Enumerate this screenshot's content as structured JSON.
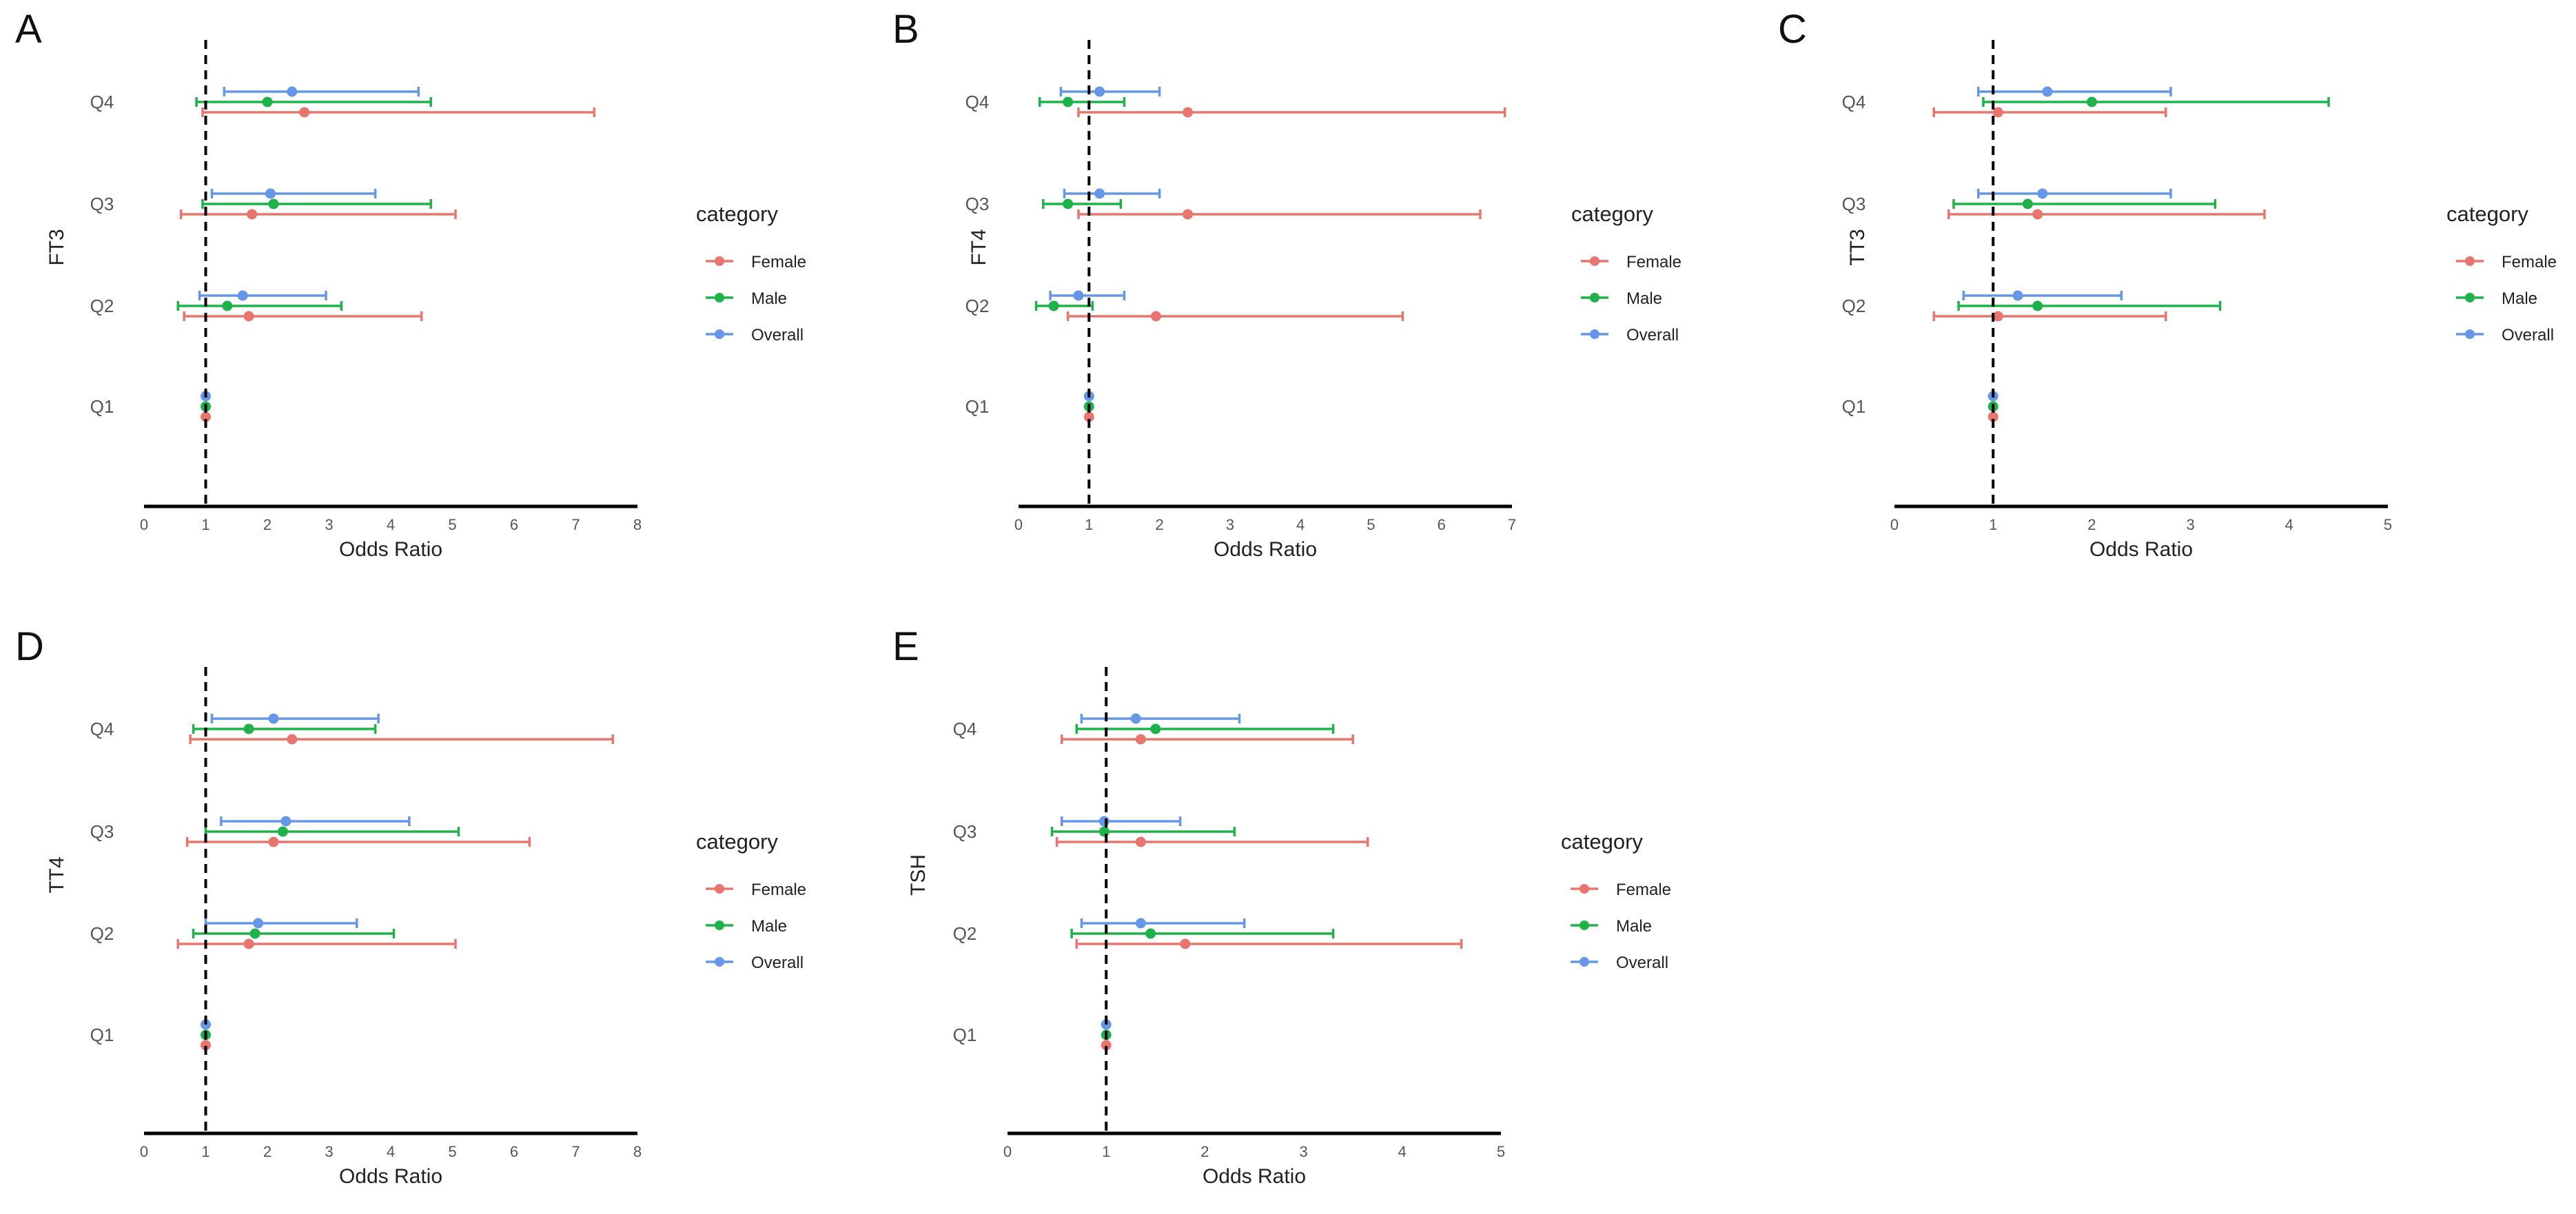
{
  "figure": {
    "legend_title": "category",
    "categories": [
      "Female",
      "Male",
      "Overall"
    ],
    "colors": {
      "Female": "#E8766F",
      "Male": "#1FB24A",
      "Overall": "#6596E8"
    },
    "reference_line": 1
  },
  "chart_data": [
    {
      "panel": "A",
      "type": "forest",
      "ylabel": "FT3",
      "xlabel": "Odds Ratio",
      "xlim": [
        0,
        8
      ],
      "xticks": [
        0,
        1,
        2,
        3,
        4,
        5,
        6,
        7,
        8
      ],
      "rows": [
        "Q1",
        "Q2",
        "Q3",
        "Q4"
      ],
      "series": [
        {
          "name": "Female",
          "points": [
            {
              "row": "Q1",
              "or": 1.0,
              "lo": 1.0,
              "hi": 1.0
            },
            {
              "row": "Q2",
              "or": 1.7,
              "lo": 0.65,
              "hi": 4.5
            },
            {
              "row": "Q3",
              "or": 1.75,
              "lo": 0.6,
              "hi": 5.05
            },
            {
              "row": "Q4",
              "or": 2.6,
              "lo": 0.95,
              "hi": 7.3
            }
          ]
        },
        {
          "name": "Male",
          "points": [
            {
              "row": "Q1",
              "or": 1.0,
              "lo": 1.0,
              "hi": 1.0
            },
            {
              "row": "Q2",
              "or": 1.35,
              "lo": 0.55,
              "hi": 3.2
            },
            {
              "row": "Q3",
              "or": 2.1,
              "lo": 0.95,
              "hi": 4.65
            },
            {
              "row": "Q4",
              "or": 2.0,
              "lo": 0.85,
              "hi": 4.65
            }
          ]
        },
        {
          "name": "Overall",
          "points": [
            {
              "row": "Q1",
              "or": 1.0,
              "lo": 1.0,
              "hi": 1.0
            },
            {
              "row": "Q2",
              "or": 1.6,
              "lo": 0.9,
              "hi": 2.95
            },
            {
              "row": "Q3",
              "or": 2.05,
              "lo": 1.1,
              "hi": 3.75
            },
            {
              "row": "Q4",
              "or": 2.4,
              "lo": 1.3,
              "hi": 4.45
            }
          ]
        }
      ]
    },
    {
      "panel": "B",
      "type": "forest",
      "ylabel": "FT4",
      "xlabel": "Odds Ratio",
      "xlim": [
        0,
        7
      ],
      "xticks": [
        0,
        1,
        2,
        3,
        4,
        5,
        6,
        7
      ],
      "rows": [
        "Q1",
        "Q2",
        "Q3",
        "Q4"
      ],
      "series": [
        {
          "name": "Female",
          "points": [
            {
              "row": "Q1",
              "or": 1.0,
              "lo": 1.0,
              "hi": 1.0
            },
            {
              "row": "Q2",
              "or": 1.95,
              "lo": 0.7,
              "hi": 5.45
            },
            {
              "row": "Q3",
              "or": 2.4,
              "lo": 0.85,
              "hi": 6.55
            },
            {
              "row": "Q4",
              "or": 2.4,
              "lo": 0.85,
              "hi": 6.9
            }
          ]
        },
        {
          "name": "Male",
          "points": [
            {
              "row": "Q1",
              "or": 1.0,
              "lo": 1.0,
              "hi": 1.0
            },
            {
              "row": "Q2",
              "or": 0.5,
              "lo": 0.25,
              "hi": 1.05
            },
            {
              "row": "Q3",
              "or": 0.7,
              "lo": 0.35,
              "hi": 1.45
            },
            {
              "row": "Q4",
              "or": 0.7,
              "lo": 0.3,
              "hi": 1.5
            }
          ]
        },
        {
          "name": "Overall",
          "points": [
            {
              "row": "Q1",
              "or": 1.0,
              "lo": 1.0,
              "hi": 1.0
            },
            {
              "row": "Q2",
              "or": 0.85,
              "lo": 0.45,
              "hi": 1.5
            },
            {
              "row": "Q3",
              "or": 1.15,
              "lo": 0.65,
              "hi": 2.0
            },
            {
              "row": "Q4",
              "or": 1.15,
              "lo": 0.6,
              "hi": 2.0
            }
          ]
        }
      ]
    },
    {
      "panel": "C",
      "type": "forest",
      "ylabel": "TT3",
      "xlabel": "Odds Ratio",
      "xlim": [
        0,
        5
      ],
      "xticks": [
        0,
        1,
        2,
        3,
        4,
        5
      ],
      "rows": [
        "Q1",
        "Q2",
        "Q3",
        "Q4"
      ],
      "series": [
        {
          "name": "Female",
          "points": [
            {
              "row": "Q1",
              "or": 1.0,
              "lo": 1.0,
              "hi": 1.0
            },
            {
              "row": "Q2",
              "or": 1.05,
              "lo": 0.4,
              "hi": 2.75
            },
            {
              "row": "Q3",
              "or": 1.45,
              "lo": 0.55,
              "hi": 3.75
            },
            {
              "row": "Q4",
              "or": 1.05,
              "lo": 0.4,
              "hi": 2.75
            }
          ]
        },
        {
          "name": "Male",
          "points": [
            {
              "row": "Q1",
              "or": 1.0,
              "lo": 1.0,
              "hi": 1.0
            },
            {
              "row": "Q2",
              "or": 1.45,
              "lo": 0.65,
              "hi": 3.3
            },
            {
              "row": "Q3",
              "or": 1.35,
              "lo": 0.6,
              "hi": 3.25
            },
            {
              "row": "Q4",
              "or": 2.0,
              "lo": 0.9,
              "hi": 4.4
            }
          ]
        },
        {
          "name": "Overall",
          "points": [
            {
              "row": "Q1",
              "or": 1.0,
              "lo": 1.0,
              "hi": 1.0
            },
            {
              "row": "Q2",
              "or": 1.25,
              "lo": 0.7,
              "hi": 2.3
            },
            {
              "row": "Q3",
              "or": 1.5,
              "lo": 0.85,
              "hi": 2.8
            },
            {
              "row": "Q4",
              "or": 1.55,
              "lo": 0.85,
              "hi": 2.8
            }
          ]
        }
      ]
    },
    {
      "panel": "D",
      "type": "forest",
      "ylabel": "TT4",
      "xlabel": "Odds Ratio",
      "xlim": [
        0,
        8
      ],
      "xticks": [
        0,
        1,
        2,
        3,
        4,
        5,
        6,
        7,
        8
      ],
      "rows": [
        "Q1",
        "Q2",
        "Q3",
        "Q4"
      ],
      "series": [
        {
          "name": "Female",
          "points": [
            {
              "row": "Q1",
              "or": 1.0,
              "lo": 1.0,
              "hi": 1.0
            },
            {
              "row": "Q2",
              "or": 1.7,
              "lo": 0.55,
              "hi": 5.05
            },
            {
              "row": "Q3",
              "or": 2.1,
              "lo": 0.7,
              "hi": 6.25
            },
            {
              "row": "Q4",
              "or": 2.4,
              "lo": 0.75,
              "hi": 7.6
            }
          ]
        },
        {
          "name": "Male",
          "points": [
            {
              "row": "Q1",
              "or": 1.0,
              "lo": 1.0,
              "hi": 1.0
            },
            {
              "row": "Q2",
              "or": 1.8,
              "lo": 0.8,
              "hi": 4.05
            },
            {
              "row": "Q3",
              "or": 2.25,
              "lo": 1.0,
              "hi": 5.1
            },
            {
              "row": "Q4",
              "or": 1.7,
              "lo": 0.8,
              "hi": 3.75
            }
          ]
        },
        {
          "name": "Overall",
          "points": [
            {
              "row": "Q1",
              "or": 1.0,
              "lo": 1.0,
              "hi": 1.0
            },
            {
              "row": "Q2",
              "or": 1.85,
              "lo": 1.0,
              "hi": 3.45
            },
            {
              "row": "Q3",
              "or": 2.3,
              "lo": 1.25,
              "hi": 4.3
            },
            {
              "row": "Q4",
              "or": 2.1,
              "lo": 1.1,
              "hi": 3.8
            }
          ]
        }
      ]
    },
    {
      "panel": "E",
      "type": "forest",
      "ylabel": "TSH",
      "xlabel": "Odds Ratio",
      "xlim": [
        0,
        5
      ],
      "xticks": [
        0,
        1,
        2,
        3,
        4,
        5
      ],
      "rows": [
        "Q1",
        "Q2",
        "Q3",
        "Q4"
      ],
      "series": [
        {
          "name": "Female",
          "points": [
            {
              "row": "Q1",
              "or": 1.0,
              "lo": 1.0,
              "hi": 1.0
            },
            {
              "row": "Q2",
              "or": 1.8,
              "lo": 0.7,
              "hi": 4.6
            },
            {
              "row": "Q3",
              "or": 1.35,
              "lo": 0.5,
              "hi": 3.65
            },
            {
              "row": "Q4",
              "or": 1.35,
              "lo": 0.55,
              "hi": 3.5
            }
          ]
        },
        {
          "name": "Male",
          "points": [
            {
              "row": "Q1",
              "or": 1.0,
              "lo": 1.0,
              "hi": 1.0
            },
            {
              "row": "Q2",
              "or": 1.45,
              "lo": 0.65,
              "hi": 3.3
            },
            {
              "row": "Q3",
              "or": 0.98,
              "lo": 0.45,
              "hi": 2.3
            },
            {
              "row": "Q4",
              "or": 1.5,
              "lo": 0.7,
              "hi": 3.3
            }
          ]
        },
        {
          "name": "Overall",
          "points": [
            {
              "row": "Q1",
              "or": 1.0,
              "lo": 1.0,
              "hi": 1.0
            },
            {
              "row": "Q2",
              "or": 1.35,
              "lo": 0.75,
              "hi": 2.4
            },
            {
              "row": "Q3",
              "or": 0.98,
              "lo": 0.55,
              "hi": 1.75
            },
            {
              "row": "Q4",
              "or": 1.3,
              "lo": 0.75,
              "hi": 2.35
            }
          ]
        }
      ]
    }
  ]
}
